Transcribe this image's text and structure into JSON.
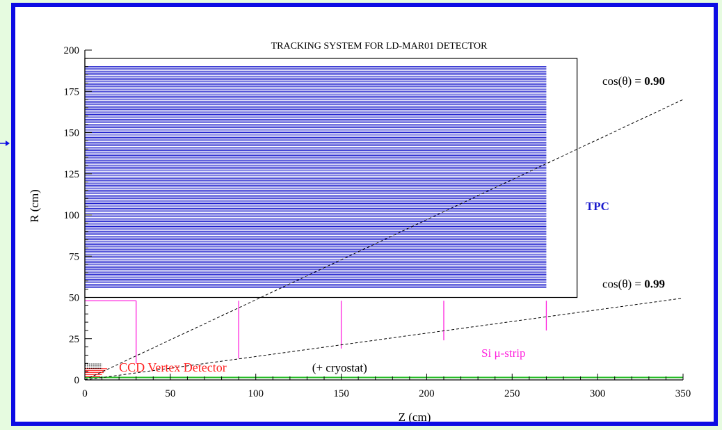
{
  "colors": {
    "background": "#e6fbe0",
    "frame_border": "#0c0ce4",
    "tpc": "#1a1acc",
    "vertex": "#ff2020",
    "strip": "#ff22dd",
    "beam": "#22bb22",
    "axis": "#000000"
  },
  "chart_data": {
    "type": "diagram",
    "title": "TRACKING SYSTEM FOR LD-MAR01 DETECTOR",
    "xlabel": "Z (cm)",
    "ylabel": "R (cm)",
    "xlim": [
      0,
      350
    ],
    "ylim": [
      0,
      200
    ],
    "xticks": [
      0,
      50,
      100,
      150,
      200,
      250,
      300,
      350
    ],
    "yticks": [
      0,
      25,
      50,
      75,
      100,
      125,
      150,
      175,
      200
    ],
    "tpc": {
      "label": "TPC",
      "z_range": [
        0,
        270
      ],
      "r_range": [
        56,
        190
      ],
      "outer_box": {
        "z": [
          0,
          288
        ],
        "r": [
          50,
          195
        ]
      }
    },
    "si_strips": {
      "label": "Si μ-strip",
      "disks": [
        {
          "z": 30,
          "r": [
            10,
            48
          ]
        },
        {
          "z": 90,
          "r": [
            13,
            48
          ]
        },
        {
          "z": 150,
          "r": [
            19,
            48
          ]
        },
        {
          "z": 210,
          "r": [
            24,
            48
          ]
        },
        {
          "z": 270,
          "r": [
            30,
            48
          ]
        }
      ],
      "barrel": {
        "r": 48,
        "z": [
          0,
          30
        ]
      }
    },
    "vertex_detector": {
      "label": "CCD Vertex Detector",
      "note": "(+ cryostat)"
    },
    "beam_pipe": {
      "r": 1.5,
      "z": [
        0,
        350
      ]
    },
    "angle_lines": [
      {
        "label_prefix": "cos(θ) = ",
        "label_value": "0.90",
        "r_at_350": 170
      },
      {
        "label_prefix": "cos(θ) = ",
        "label_value": "0.99",
        "r_at_350": 49.6
      }
    ]
  }
}
